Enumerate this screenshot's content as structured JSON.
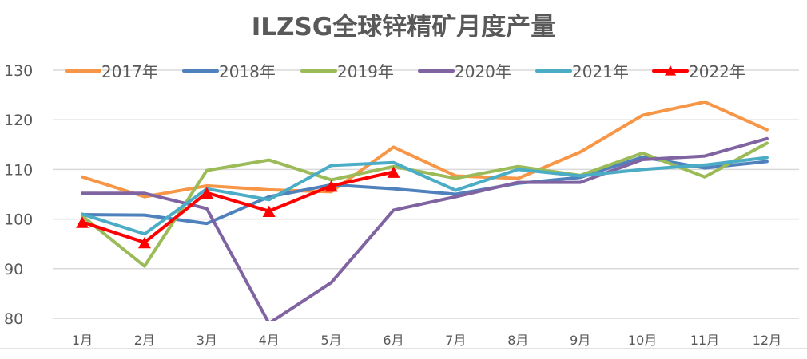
{
  "chart_data": {
    "type": "line",
    "title": "ILZSG全球锌精矿月度产量",
    "xlabel": "",
    "ylabel": "",
    "categories": [
      "1月",
      "2月",
      "3月",
      "4月",
      "5月",
      "6月",
      "7月",
      "8月",
      "9月",
      "10月",
      "11月",
      "12月"
    ],
    "ylim": [
      80,
      130
    ],
    "yticks": [
      80,
      90,
      100,
      110,
      120,
      130
    ],
    "grid": true,
    "legend_position": "top",
    "series": [
      {
        "name": "2017年",
        "color": "#F79646",
        "marker": "none",
        "values": [
          108.5,
          104.5,
          106.7,
          105.9,
          105.5,
          114.5,
          108.7,
          108.2,
          113.5,
          120.9,
          123.6,
          118.0
        ]
      },
      {
        "name": "2018年",
        "color": "#4F81BD",
        "marker": "none",
        "values": [
          100.9,
          100.8,
          99.1,
          104.5,
          106.9,
          106.1,
          105.0,
          107.2,
          108.4,
          112.5,
          110.3,
          111.6
        ]
      },
      {
        "name": "2019年",
        "color": "#9BBB59",
        "marker": "none",
        "values": [
          100.6,
          90.5,
          109.8,
          111.9,
          107.9,
          110.6,
          108.2,
          110.6,
          108.8,
          113.3,
          108.5,
          115.3
        ]
      },
      {
        "name": "2020年",
        "color": "#8064A2",
        "marker": "none",
        "values": [
          105.2,
          105.2,
          102.1,
          79.0,
          87.2,
          101.8,
          104.5,
          107.4,
          107.4,
          112.0,
          112.7,
          116.2
        ]
      },
      {
        "name": "2021年",
        "color": "#4BACC6",
        "marker": "none",
        "values": [
          101.0,
          97.0,
          106.1,
          103.9,
          110.8,
          111.4,
          105.8,
          110.0,
          108.7,
          110.0,
          110.9,
          112.4
        ]
      },
      {
        "name": "2022年",
        "color": "#FF0000",
        "marker": "triangle",
        "values": [
          99.4,
          95.3,
          105.3,
          101.6,
          106.7,
          109.5
        ]
      }
    ]
  }
}
